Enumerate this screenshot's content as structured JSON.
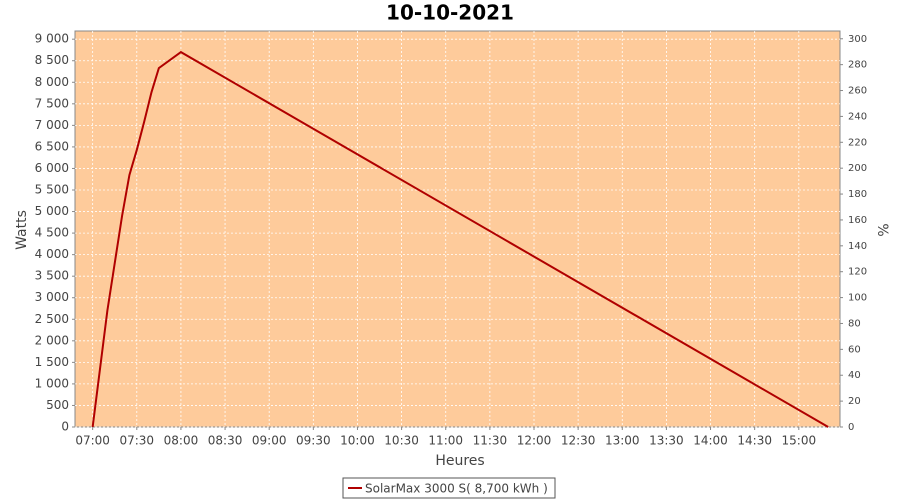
{
  "chart_data": {
    "type": "line",
    "title": "10-10-2021",
    "x_label": "Heures",
    "y_label": "Watts",
    "y2_label": "%",
    "x": [
      "07:00",
      "07:10",
      "07:20",
      "07:25",
      "07:30",
      "07:35",
      "07:40",
      "07:45",
      "08:00",
      "15:20"
    ],
    "series": [
      {
        "name": "SolarMax 3000 S( 8,700 kWh )",
        "color": "#b00000",
        "values": [
          0,
          2700,
          4900,
          5850,
          6430,
          7080,
          7770,
          8330,
          8700,
          0
        ]
      }
    ],
    "xlim": [
      "06:48",
      "15:28"
    ],
    "xticks": [
      "07:00",
      "07:30",
      "08:00",
      "08:30",
      "09:00",
      "09:30",
      "10:00",
      "10:30",
      "11:00",
      "11:30",
      "12:00",
      "12:30",
      "13:00",
      "13:30",
      "14:00",
      "14:30",
      "15:00"
    ],
    "ylim": [
      0,
      9190
    ],
    "yticks": [
      0,
      500,
      {
        "value": 1000,
        "label": "1 000"
      },
      {
        "value": 1500,
        "label": "1 500"
      },
      {
        "value": 2000,
        "label": "2 000"
      },
      {
        "value": 2500,
        "label": "2 500"
      },
      {
        "value": 3000,
        "label": "3 000"
      },
      {
        "value": 3500,
        "label": "3 500"
      },
      {
        "value": 4000,
        "label": "4 000"
      },
      {
        "value": 4500,
        "label": "4 500"
      },
      {
        "value": 5000,
        "label": "5 000"
      },
      {
        "value": 5500,
        "label": "5 500"
      },
      {
        "value": 6000,
        "label": "6 000"
      },
      {
        "value": 6500,
        "label": "6 500"
      },
      {
        "value": 7000,
        "label": "7 000"
      },
      {
        "value": 7500,
        "label": "7 500"
      },
      {
        "value": 8000,
        "label": "8 000"
      },
      {
        "value": 8500,
        "label": "8 500"
      },
      {
        "value": 9000,
        "label": "9 000"
      }
    ],
    "y2lim": [
      0,
      306
    ],
    "y2ticks": [
      0,
      20,
      40,
      60,
      80,
      100,
      120,
      140,
      160,
      180,
      200,
      220,
      240,
      260,
      280,
      300
    ],
    "grid": true,
    "background": "#fecb9b"
  }
}
